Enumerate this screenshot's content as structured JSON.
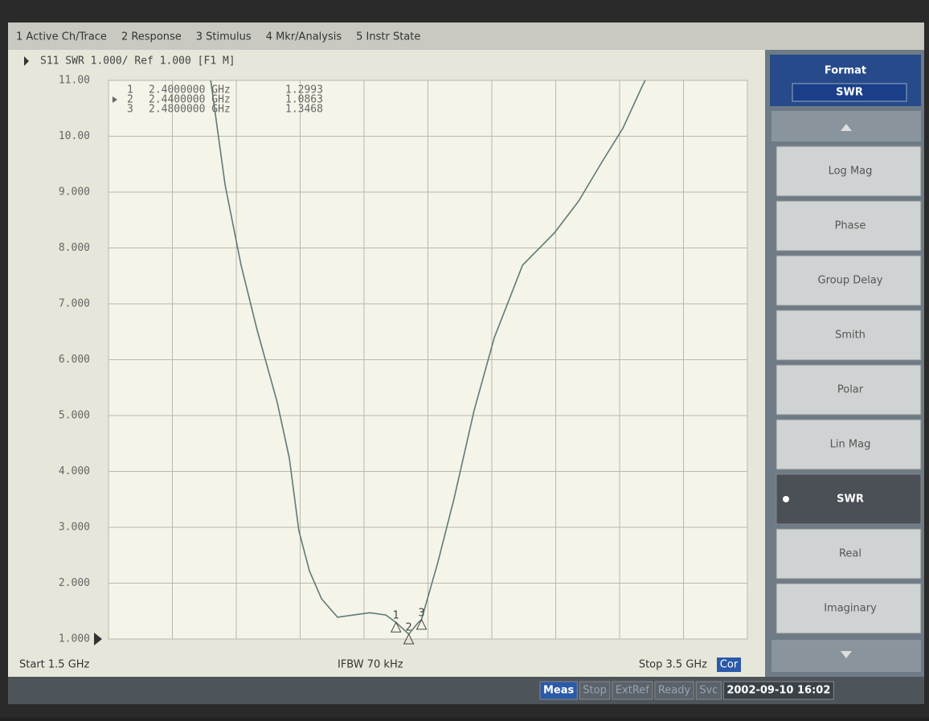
{
  "menu": [
    "1 Active Ch/Trace",
    "2 Response",
    "3 Stimulus",
    "4 Mkr/Analysis",
    "5 Instr State"
  ],
  "chart_data": {
    "type": "line",
    "title": "S11 SWR 1.000/ Ref 1.000 [F1 M]",
    "x": [
      1.82,
      1.865,
      1.915,
      1.965,
      2.028,
      2.066,
      2.096,
      2.129,
      2.167,
      2.217,
      2.267,
      2.318,
      2.368,
      2.4,
      2.44,
      2.469,
      2.48,
      2.531,
      2.582,
      2.645,
      2.708,
      2.796,
      2.896,
      2.972,
      3.047,
      3.11,
      3.168,
      3.18
    ],
    "series": [
      {
        "color": "#5e7a78",
        "values": [
          11.0,
          9.13,
          7.69,
          6.54,
          5.24,
          4.24,
          2.94,
          2.22,
          1.72,
          1.39,
          1.43,
          1.47,
          1.43,
          1.2993,
          1.0863,
          1.29,
          1.3468,
          2.37,
          3.52,
          5.1,
          6.4,
          7.69,
          8.27,
          8.84,
          9.56,
          10.14,
          10.86,
          11.0
        ]
      }
    ],
    "xlim": [
      1.5,
      3.5
    ],
    "xticks": [
      1.5,
      1.7,
      1.9,
      2.1,
      2.3,
      2.5,
      2.7,
      2.9,
      3.1,
      3.3,
      3.5
    ],
    "ylim": [
      1,
      11
    ],
    "yticks": [
      {
        "value": 1,
        "label": "1.000"
      },
      {
        "value": 2,
        "label": "2.000"
      },
      {
        "value": 3,
        "label": "3.000"
      },
      {
        "value": 4,
        "label": "4.000"
      },
      {
        "value": 5,
        "label": "5.000"
      },
      {
        "value": 6,
        "label": "6.000"
      },
      {
        "value": 7,
        "label": "7.000"
      },
      {
        "value": 8,
        "label": "8.000"
      },
      {
        "value": 9,
        "label": "9.000"
      },
      {
        "value": 10,
        "label": "10.00"
      },
      {
        "value": 11,
        "label": "11.00"
      }
    ],
    "grid": true,
    "markers": [
      {
        "label": "1",
        "x": 2.4,
        "x_label": "2.4000000 GHz",
        "y": 1.2993,
        "y_label": "1.2993"
      },
      {
        "label": "2",
        "x": 2.44,
        "x_label": "2.4400000 GHz",
        "y": 1.0863,
        "y_label": "1.0863"
      },
      {
        "label": "3",
        "x": 2.48,
        "x_label": "2.4800000 GHz",
        "y": 1.3468,
        "y_label": "1.3468"
      }
    ],
    "start_label": "Start 1.5 GHz",
    "ifbw_label": "IFBW 70 kHz",
    "stop_label": "Stop 3.5 GHz",
    "correction": "Cor"
  },
  "softkeys": {
    "title": "Format",
    "current": "SWR",
    "buttons": [
      "Log Mag",
      "Phase",
      "Group Delay",
      "Smith",
      "Polar",
      "Lin Mag",
      "SWR",
      "Real",
      "Imaginary"
    ],
    "selected": 6
  },
  "status": [
    "Meas",
    "Stop",
    "ExtRef",
    "Ready",
    "Svc"
  ],
  "datetime": "2002-09-10 16:02"
}
